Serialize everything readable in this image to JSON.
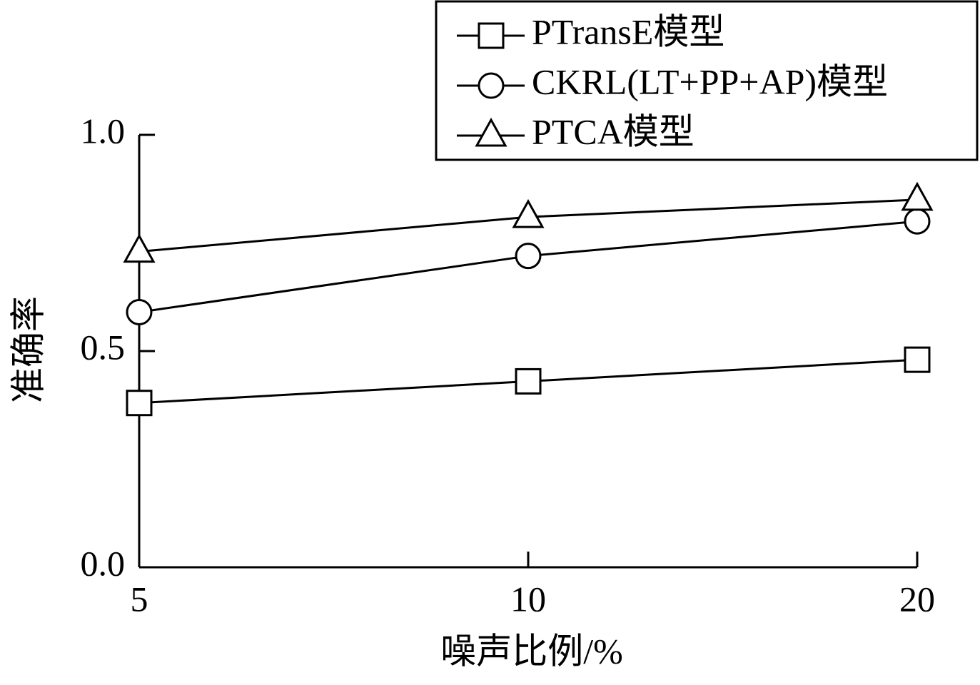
{
  "chart_data": {
    "type": "line",
    "x_label": "噪声比例/%",
    "y_label": "准确率",
    "categories": [
      "5",
      "10",
      "20"
    ],
    "series": [
      {
        "name": "PTransE模型",
        "color": "#000000",
        "marker": "square",
        "values": [
          0.38,
          0.43,
          0.48
        ]
      },
      {
        "name": "CKRL(LT+PP+AP)模型",
        "color": "#000000",
        "marker": "circle",
        "values": [
          0.59,
          0.72,
          0.8
        ]
      },
      {
        "name": "PTCA模型",
        "color": "#000000",
        "marker": "triangle",
        "values": [
          0.73,
          0.81,
          0.85
        ]
      }
    ],
    "ylim": [
      0,
      1
    ],
    "yticks": [
      {
        "value": 0,
        "label": "0.0"
      },
      {
        "value": 0.5,
        "label": "0.5"
      },
      {
        "value": 1,
        "label": "1.0"
      }
    ],
    "grid": false,
    "legend": "top-right"
  }
}
